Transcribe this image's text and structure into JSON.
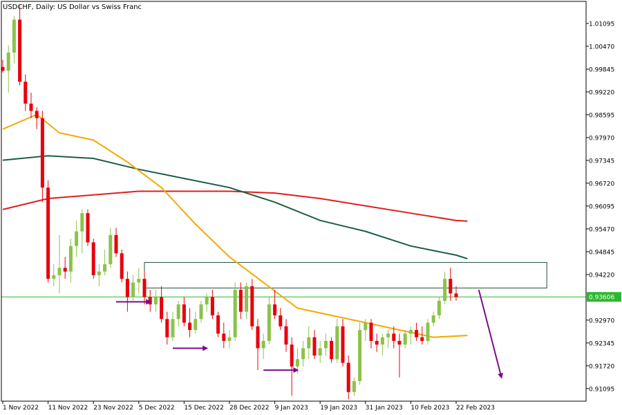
{
  "chart_data": {
    "type": "candlestick",
    "title": "USDCHF, Daily:  US Dollar vs Swiss Franc",
    "symbol": "USDCHF",
    "timeframe": "Daily",
    "description": "US Dollar vs Swiss Franc",
    "ylim": [
      0.9075,
      1.017
    ],
    "y_ticks": [
      "1.01095",
      "1.00470",
      "0.99845",
      "0.99220",
      "0.98595",
      "0.97970",
      "0.97345",
      "0.96720",
      "0.96095",
      "0.95470",
      "0.94845",
      "0.94220",
      "0.92970",
      "0.92345",
      "0.91720",
      "0.91095"
    ],
    "x_ticks": [
      {
        "label": "1 Nov 2022",
        "index": 0
      },
      {
        "label": "11 Nov 2022",
        "index": 8
      },
      {
        "label": "23 Nov 2022",
        "index": 16
      },
      {
        "label": "5 Dec 2022",
        "index": 24
      },
      {
        "label": "15 Dec 2022",
        "index": 32
      },
      {
        "label": "28 Dec 2022",
        "index": 40
      },
      {
        "label": "9 Jan 2023",
        "index": 48
      },
      {
        "label": "19 Jan 2023",
        "index": 56
      },
      {
        "label": "31 Jan 2023",
        "index": 64
      },
      {
        "label": "10 Feb 2023",
        "index": 72
      },
      {
        "label": "22 Feb 2023",
        "index": 80
      }
    ],
    "current_price": "0.93606",
    "current_price_value": 0.93606,
    "colors": {
      "bull": "#8bc34a",
      "bear": "#e8000b",
      "ma_short": "#f5a800",
      "ma_mid": "#1b5e44",
      "ma_long": "#e01e1e",
      "price_line": "#2eb82e",
      "arrow": "#7b0a8a",
      "box": "#1f4f3f"
    },
    "candles": [
      [
        0.999,
        1.001,
        0.9975,
        0.998
      ],
      [
        0.998,
        1.005,
        0.992,
        1.003
      ],
      [
        1.003,
        1.013,
        1.0,
        1.012
      ],
      [
        1.012,
        1.016,
        0.994,
        0.995
      ],
      [
        0.995,
        0.997,
        0.987,
        0.989
      ],
      [
        0.989,
        0.992,
        0.985,
        0.987
      ],
      [
        0.987,
        0.988,
        0.982,
        0.985
      ],
      [
        0.985,
        0.987,
        0.962,
        0.966
      ],
      [
        0.966,
        0.968,
        0.94,
        0.941
      ],
      [
        0.941,
        0.945,
        0.939,
        0.942
      ],
      [
        0.942,
        0.953,
        0.937,
        0.944
      ],
      [
        0.944,
        0.947,
        0.941,
        0.943
      ],
      [
        0.943,
        0.952,
        0.94,
        0.95
      ],
      [
        0.95,
        0.957,
        0.947,
        0.954
      ],
      [
        0.954,
        0.96,
        0.948,
        0.959
      ],
      [
        0.959,
        0.96,
        0.95,
        0.951
      ],
      [
        0.951,
        0.952,
        0.941,
        0.942
      ],
      [
        0.942,
        0.945,
        0.939,
        0.943
      ],
      [
        0.943,
        0.949,
        0.942,
        0.945
      ],
      [
        0.945,
        0.955,
        0.944,
        0.953
      ],
      [
        0.953,
        0.955,
        0.947,
        0.948
      ],
      [
        0.948,
        0.949,
        0.94,
        0.941
      ],
      [
        0.941,
        0.943,
        0.932,
        0.936
      ],
      [
        0.936,
        0.942,
        0.935,
        0.94
      ],
      [
        0.94,
        0.944,
        0.937,
        0.941
      ],
      [
        0.941,
        0.943,
        0.934,
        0.936
      ],
      [
        0.936,
        0.938,
        0.932,
        0.934
      ],
      [
        0.934,
        0.938,
        0.932,
        0.936
      ],
      [
        0.936,
        0.939,
        0.929,
        0.93
      ],
      [
        0.93,
        0.932,
        0.923,
        0.925
      ],
      [
        0.925,
        0.932,
        0.924,
        0.93
      ],
      [
        0.93,
        0.935,
        0.928,
        0.934
      ],
      [
        0.934,
        0.936,
        0.928,
        0.929
      ],
      [
        0.929,
        0.933,
        0.925,
        0.927
      ],
      [
        0.927,
        0.932,
        0.926,
        0.93
      ],
      [
        0.93,
        0.935,
        0.929,
        0.934
      ],
      [
        0.934,
        0.937,
        0.932,
        0.936
      ],
      [
        0.936,
        0.938,
        0.93,
        0.931
      ],
      [
        0.931,
        0.932,
        0.925,
        0.926
      ],
      [
        0.926,
        0.929,
        0.922,
        0.924
      ],
      [
        0.924,
        0.927,
        0.922,
        0.925
      ],
      [
        0.925,
        0.94,
        0.924,
        0.938
      ],
      [
        0.938,
        0.94,
        0.93,
        0.932
      ],
      [
        0.932,
        0.94,
        0.93,
        0.939
      ],
      [
        0.939,
        0.941,
        0.927,
        0.928
      ],
      [
        0.928,
        0.93,
        0.916,
        0.922
      ],
      [
        0.922,
        0.926,
        0.919,
        0.924
      ],
      [
        0.924,
        0.936,
        0.923,
        0.934
      ],
      [
        0.934,
        0.938,
        0.93,
        0.931
      ],
      [
        0.931,
        0.933,
        0.927,
        0.928
      ],
      [
        0.928,
        0.93,
        0.921,
        0.923
      ],
      [
        0.923,
        0.925,
        0.909,
        0.917
      ],
      [
        0.917,
        0.922,
        0.915,
        0.919
      ],
      [
        0.919,
        0.924,
        0.917,
        0.922
      ],
      [
        0.922,
        0.928,
        0.919,
        0.925
      ],
      [
        0.925,
        0.927,
        0.919,
        0.92
      ],
      [
        0.92,
        0.924,
        0.918,
        0.922
      ],
      [
        0.922,
        0.926,
        0.92,
        0.924
      ],
      [
        0.924,
        0.925,
        0.918,
        0.919
      ],
      [
        0.919,
        0.93,
        0.918,
        0.928
      ],
      [
        0.928,
        0.93,
        0.917,
        0.918
      ],
      [
        0.918,
        0.92,
        0.908,
        0.91
      ],
      [
        0.91,
        0.914,
        0.909,
        0.913
      ],
      [
        0.913,
        0.929,
        0.912,
        0.927
      ],
      [
        0.927,
        0.93,
        0.924,
        0.929
      ],
      [
        0.929,
        0.93,
        0.922,
        0.924
      ],
      [
        0.924,
        0.926,
        0.921,
        0.923
      ],
      [
        0.923,
        0.926,
        0.92,
        0.925
      ],
      [
        0.925,
        0.927,
        0.922,
        0.926
      ],
      [
        0.926,
        0.928,
        0.922,
        0.924
      ],
      [
        0.924,
        0.926,
        0.914,
        0.923
      ],
      [
        0.923,
        0.927,
        0.922,
        0.926
      ],
      [
        0.926,
        0.928,
        0.923,
        0.927
      ],
      [
        0.927,
        0.929,
        0.924,
        0.925
      ],
      [
        0.925,
        0.928,
        0.923,
        0.924
      ],
      [
        0.924,
        0.93,
        0.923,
        0.929
      ],
      [
        0.929,
        0.932,
        0.928,
        0.931
      ],
      [
        0.931,
        0.936,
        0.93,
        0.935
      ],
      [
        0.935,
        0.943,
        0.934,
        0.941
      ],
      [
        0.941,
        0.944,
        0.935,
        0.937
      ],
      [
        0.937,
        0.939,
        0.935,
        0.936
      ]
    ],
    "ma_short": [
      [
        0,
        0.982
      ],
      [
        6,
        0.986
      ],
      [
        10,
        0.981
      ],
      [
        16,
        0.979
      ],
      [
        22,
        0.973
      ],
      [
        28,
        0.966
      ],
      [
        34,
        0.956
      ],
      [
        40,
        0.947
      ],
      [
        46,
        0.94
      ],
      [
        52,
        0.933
      ],
      [
        58,
        0.931
      ],
      [
        64,
        0.929
      ],
      [
        70,
        0.927
      ],
      [
        76,
        0.925
      ],
      [
        82,
        0.9255
      ]
    ],
    "ma_mid": [
      [
        0,
        0.9735
      ],
      [
        8,
        0.9747
      ],
      [
        16,
        0.974
      ],
      [
        24,
        0.971
      ],
      [
        32,
        0.9685
      ],
      [
        40,
        0.966
      ],
      [
        48,
        0.962
      ],
      [
        56,
        0.957
      ],
      [
        64,
        0.954
      ],
      [
        72,
        0.95
      ],
      [
        80,
        0.9475
      ],
      [
        82,
        0.9465
      ]
    ],
    "ma_long": [
      [
        0,
        0.96
      ],
      [
        8,
        0.963
      ],
      [
        16,
        0.964
      ],
      [
        24,
        0.965
      ],
      [
        32,
        0.965
      ],
      [
        40,
        0.965
      ],
      [
        48,
        0.9645
      ],
      [
        56,
        0.963
      ],
      [
        64,
        0.961
      ],
      [
        72,
        0.959
      ],
      [
        80,
        0.957
      ],
      [
        82,
        0.9568
      ]
    ],
    "zone": {
      "from_index": 25,
      "to_index": 96,
      "high": 0.9455,
      "low": 0.9385
    },
    "arrows_right": [
      {
        "from_index": 20,
        "to_index": 26,
        "price": 0.9347
      },
      {
        "from_index": 30,
        "to_index": 36,
        "price": 0.922
      },
      {
        "from_index": 46,
        "to_index": 52,
        "price": 0.916
      }
    ],
    "arrow_down": {
      "from_index": 84,
      "from_price": 0.938,
      "to_index": 88,
      "to_price": 0.914
    }
  }
}
